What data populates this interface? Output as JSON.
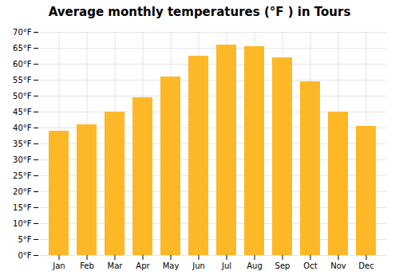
{
  "chart_data": {
    "type": "bar",
    "title": "Average monthly temperatures (°F ) in Tours",
    "categories": [
      "Jan",
      "Feb",
      "Mar",
      "Apr",
      "May",
      "Jun",
      "Jul",
      "Aug",
      "Sep",
      "Oct",
      "Nov",
      "Dec"
    ],
    "values": [
      39,
      41,
      45,
      49.5,
      56,
      62.5,
      66,
      65.5,
      62,
      54.5,
      45,
      40.5
    ],
    "color": "#FDB827",
    "ylim": [
      0,
      70
    ],
    "yticks": [
      {
        "value": 0,
        "label": "0°F"
      },
      {
        "value": 5,
        "label": "5°F"
      },
      {
        "value": 10,
        "label": "10°F"
      },
      {
        "value": 15,
        "label": "15°F"
      },
      {
        "value": 20,
        "label": "20°F"
      },
      {
        "value": 25,
        "label": "25°F"
      },
      {
        "value": 30,
        "label": "30°F"
      },
      {
        "value": 35,
        "label": "35°F"
      },
      {
        "value": 40,
        "label": "40°F"
      },
      {
        "value": 45,
        "label": "45°F"
      },
      {
        "value": 50,
        "label": "50°F"
      },
      {
        "value": 55,
        "label": "55°F"
      },
      {
        "value": 60,
        "label": "60°F"
      },
      {
        "value": 65,
        "label": "65°F"
      },
      {
        "value": 70,
        "label": "70°F"
      }
    ],
    "grid": true
  }
}
